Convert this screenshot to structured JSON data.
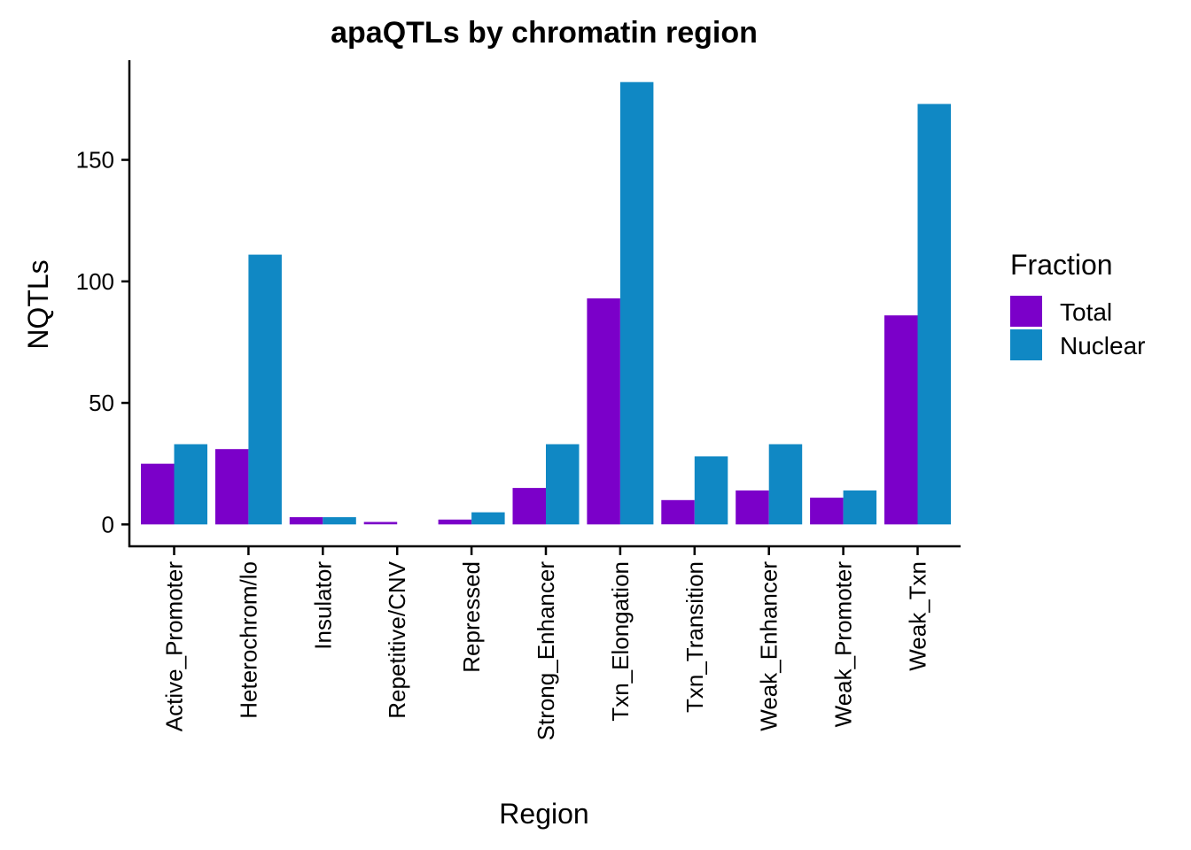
{
  "chart_data": {
    "type": "bar",
    "title": "apaQTLs by chromatin region",
    "xlabel": "Region",
    "ylabel": "NQTLs",
    "categories": [
      "Active_Promoter",
      "Heterochrom/lo",
      "Insulator",
      "Repetitive/CNV",
      "Repressed",
      "Strong_Enhancer",
      "Txn_Elongation",
      "Txn_Transition",
      "Weak_Enhancer",
      "Weak_Promoter",
      "Weak_Txn"
    ],
    "series": [
      {
        "name": "Total",
        "color": "#7B00C9",
        "values": [
          25,
          31,
          3,
          1,
          2,
          15,
          93,
          10,
          14,
          11,
          86
        ]
      },
      {
        "name": "Nuclear",
        "color": "#1088C4",
        "values": [
          33,
          111,
          3,
          0,
          5,
          33,
          182,
          28,
          33,
          14,
          173
        ]
      }
    ],
    "yticks": [
      0,
      50,
      100,
      150
    ],
    "ylim": [
      -9,
      191
    ],
    "legend": {
      "title": "Fraction",
      "placement": "right"
    },
    "grid": false
  }
}
